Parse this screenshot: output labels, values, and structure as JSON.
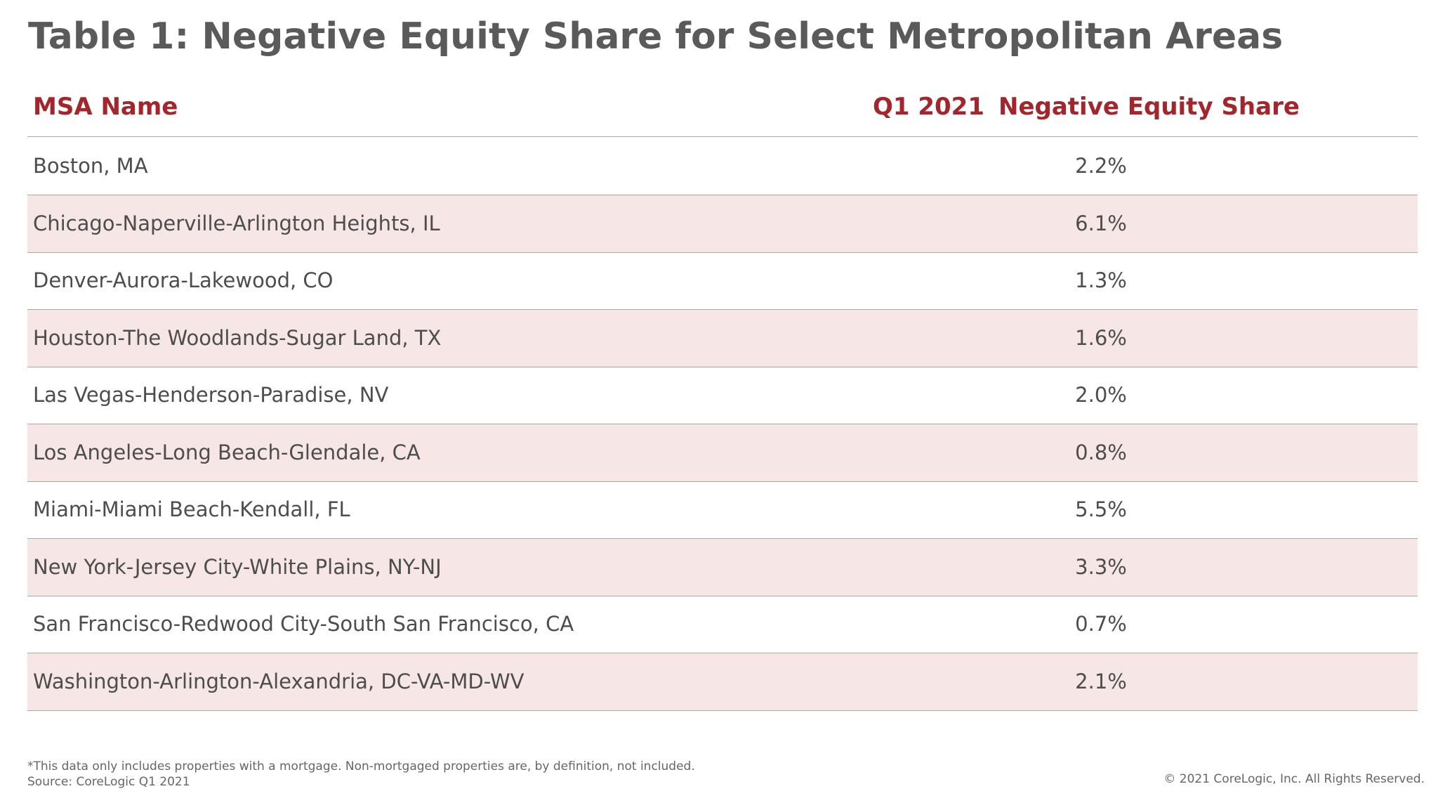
{
  "title": "Table 1: Negative Equity Share for Select Metropolitan Areas",
  "table": {
    "header": [
      "MSA Name",
      "Q1 2021",
      "Negative Equity Share"
    ],
    "rows": [
      [
        "Boston, MA",
        "2.2%"
      ],
      [
        "Chicago-Naperville-Arlington Heights, IL",
        "6.1%"
      ],
      [
        "Denver-Aurora-Lakewood, CO",
        "1.3%"
      ],
      [
        "Houston-The Woodlands-Sugar Land, TX",
        "1.6%"
      ],
      [
        "Las Vegas-Henderson-Paradise, NV",
        "2.0%"
      ],
      [
        "Los Angeles-Long Beach-Glendale, CA",
        "0.8%"
      ],
      [
        "Miami-Miami Beach-Kendall, FL",
        "5.5%"
      ],
      [
        "New York-Jersey City-White Plains, NY-NJ",
        "3.3%"
      ],
      [
        "San Francisco-Redwood City-South San Francisco, CA",
        "0.7%"
      ],
      [
        "Washington-Arlington-Alexandria, DC-VA-MD-WV",
        "2.1%"
      ]
    ]
  },
  "footer": {
    "note": "*This data only includes properties with a mortgage. Non-mortgaged properties are, by definition, not included.",
    "source": "Source: CoreLogic Q1 2021",
    "copyright": "© 2021 CoreLogic, Inc. All Rights Reserved."
  }
}
